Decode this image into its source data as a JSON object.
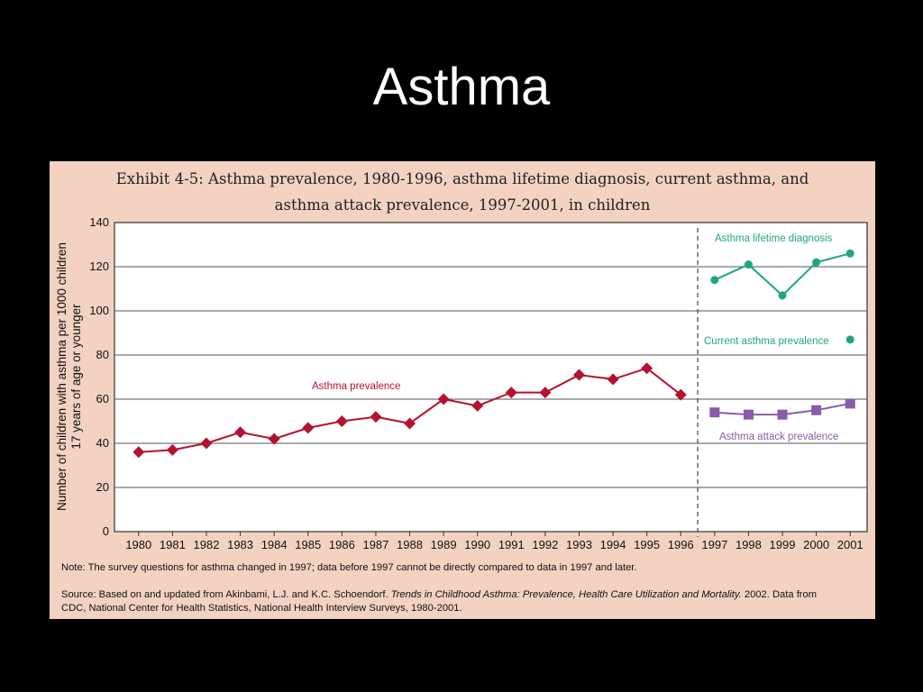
{
  "slide": {
    "title": "Asthma"
  },
  "colors": {
    "background": "#000000",
    "panel": "#f3d2c1",
    "prevalence": "#b5122e",
    "lifetime": "#1fa67a",
    "current": "#1fa67a",
    "attack": "#8a5ba8"
  },
  "chart_data": {
    "type": "line",
    "title": "Exhibit 4-5: Asthma prevalence, 1980-1996, asthma lifetime diagnosis, current asthma, and asthma attack prevalence, 1997-2001, in children",
    "title_lines": [
      "Exhibit 4-5: Asthma prevalence, 1980-1996, asthma lifetime diagnosis, current asthma, and",
      "asthma attack prevalence, 1997-2001, in children"
    ],
    "xlabel": "",
    "ylabel": "Number of children with asthma per 1000 children 17 years of age or younger",
    "ylabel_lines": [
      "Number of children with asthma per 1000 children",
      "17 years of age or younger"
    ],
    "ylim": [
      0,
      140
    ],
    "yticks": [
      0,
      20,
      40,
      60,
      80,
      100,
      120,
      140
    ],
    "categories": [
      "1980",
      "1981",
      "1982",
      "1983",
      "1984",
      "1985",
      "1986",
      "1987",
      "1988",
      "1989",
      "1990",
      "1991",
      "1992",
      "1993",
      "1994",
      "1995",
      "1996",
      "1997",
      "1998",
      "1999",
      "2000",
      "2001"
    ],
    "grid": true,
    "divider_between": [
      "1996",
      "1997"
    ],
    "series": [
      {
        "name": "Asthma prevalence",
        "marker": "diamond",
        "x": [
          "1980",
          "1981",
          "1982",
          "1983",
          "1984",
          "1985",
          "1986",
          "1987",
          "1988",
          "1989",
          "1990",
          "1991",
          "1992",
          "1993",
          "1994",
          "1995",
          "1996"
        ],
        "values": [
          36,
          37,
          40,
          45,
          42,
          47,
          50,
          52,
          49,
          60,
          57,
          63,
          63,
          71,
          69,
          74,
          62
        ]
      },
      {
        "name": "Asthma lifetime diagnosis",
        "marker": "circle",
        "x": [
          "1997",
          "1998",
          "1999",
          "2000",
          "2001"
        ],
        "values": [
          114,
          121,
          107,
          122,
          126
        ]
      },
      {
        "name": "Current asthma prevalence",
        "marker": "circle",
        "x": [
          "2001"
        ],
        "values": [
          87
        ]
      },
      {
        "name": "Asthma attack prevalence",
        "marker": "square",
        "x": [
          "1997",
          "1998",
          "1999",
          "2000",
          "2001"
        ],
        "values": [
          54,
          53,
          53,
          55,
          58
        ]
      }
    ],
    "note": "Note:  The survey questions for asthma changed in 1997; data before 1997 cannot be directly compared to data in 1997 and later.",
    "source": {
      "prefix": "Source:  Based on and updated from Akinbami, L.J. and K.C. Schoendorf.",
      "italic": "Trends in Childhood Asthma: Prevalence, Health Care Utilization and Mortality.",
      "suffix": "2002. Data from",
      "line2": "CDC, National Center for Health Statistics, National Health Interview Surveys, 1980-2001."
    }
  }
}
